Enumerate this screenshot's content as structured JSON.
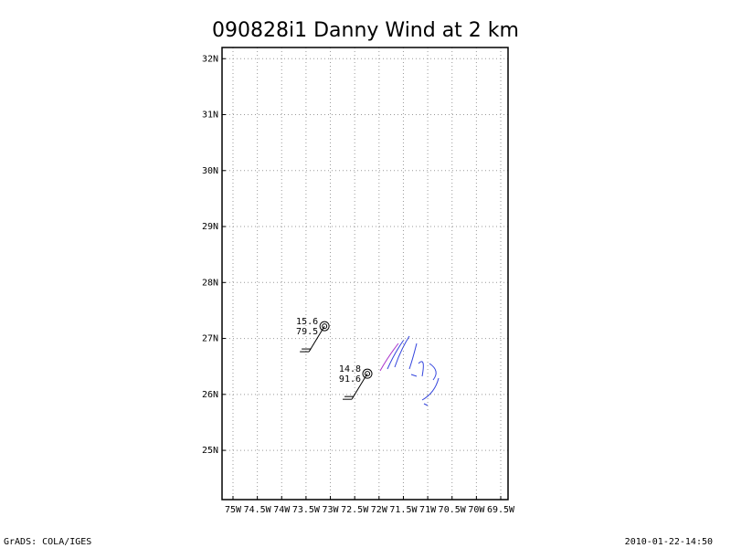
{
  "chart_data": {
    "type": "map",
    "title": "090828i1 Danny Wind at 2 km",
    "xlim": [
      -75.225,
      -69.35
    ],
    "ylim": [
      24.12,
      32.2
    ],
    "xticks": [
      {
        "value": -75,
        "label": "75W"
      },
      {
        "value": -74.5,
        "label": "74.5W"
      },
      {
        "value": -74,
        "label": "74W"
      },
      {
        "value": -73.5,
        "label": "73.5W"
      },
      {
        "value": -73,
        "label": "73W"
      },
      {
        "value": -72.5,
        "label": "72.5W"
      },
      {
        "value": -72,
        "label": "72W"
      },
      {
        "value": -71.5,
        "label": "71.5W"
      },
      {
        "value": -71,
        "label": "71W"
      },
      {
        "value": -70.5,
        "label": "70.5W"
      },
      {
        "value": -70,
        "label": "70W"
      },
      {
        "value": -69.5,
        "label": "69.5W"
      }
    ],
    "yticks": [
      {
        "value": 25,
        "label": "25N"
      },
      {
        "value": 26,
        "label": "26N"
      },
      {
        "value": 27,
        "label": "27N"
      },
      {
        "value": 28,
        "label": "28N"
      },
      {
        "value": 29,
        "label": "29N"
      },
      {
        "value": 30,
        "label": "30N"
      },
      {
        "value": 31,
        "label": "31N"
      },
      {
        "value": 32,
        "label": "32N"
      }
    ],
    "grid": true,
    "x": [
      -73.12,
      -72.24
    ],
    "values": [
      27.22,
      26.37
    ],
    "upper_labels": [
      15.6,
      14.8
    ],
    "lower_labels": [
      79.5,
      91.6
    ]
  },
  "footer": {
    "left": "GrADS: COLA/IGES",
    "right": "2010-01-22-14:50"
  }
}
